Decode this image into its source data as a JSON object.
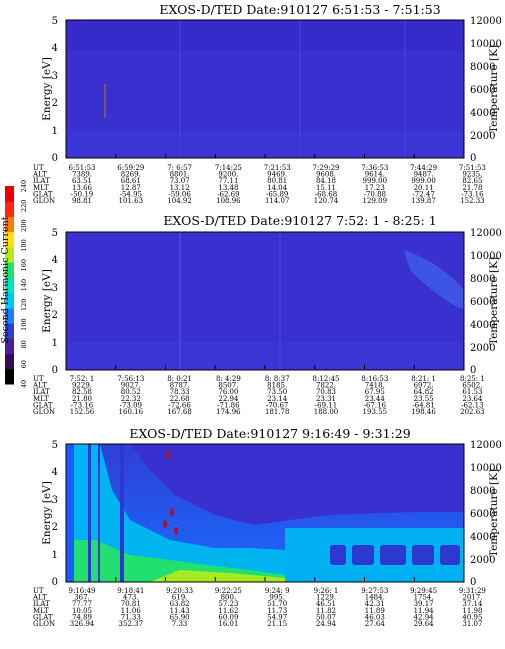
{
  "colorbar": {
    "label": "Second Harmonic Current",
    "ticks": [
      "40",
      "60",
      "80",
      "100",
      "120",
      "140",
      "160",
      "180",
      "200",
      "220",
      "240"
    ],
    "colors": [
      "#000000",
      "#3a0b4e",
      "#4b1f9a",
      "#2d3fd8",
      "#1f7fff",
      "#00c8f0",
      "#00e4c0",
      "#22e06a",
      "#b2ec1e",
      "#ffe000",
      "#ff7a00",
      "#ff2a00",
      "#e8000d"
    ]
  },
  "chart_data": [
    {
      "type": "heatmap",
      "title": "EXOS-D/TED   Date:910127  6:51:53 - 7:51:53",
      "ylabel": "Energy [eV]",
      "y2label": "Temperature [K]",
      "ylim": [
        0,
        5
      ],
      "yticks": [
        "0",
        "1",
        "2",
        "3",
        "4",
        "5"
      ],
      "y2lim": [
        0,
        12000
      ],
      "y2ticks": [
        "0",
        "2000",
        "4000",
        "6000",
        "8000",
        "10000",
        "12000"
      ],
      "background_color": "#3a2fcf",
      "ephemeris_labels": [
        "UT",
        "ALT",
        "ILAT",
        "MLT",
        "GLAT",
        "GLON"
      ],
      "ephemeris": [
        [
          "6:51:53",
          "7389.",
          "63.51",
          "13.66",
          "-50.19",
          "98.81"
        ],
        [
          "6:59:29",
          "8269.",
          "68.61",
          "12.87",
          "-54.95",
          "101.63"
        ],
        [
          "7: 6:57",
          "8801.",
          "73.07",
          "13.12",
          "-59.06",
          "104.92"
        ],
        [
          "7:14:25",
          "9200.",
          "77.11",
          "13.48",
          "-62.69",
          "108.96"
        ],
        [
          "7:21:53",
          "9469.",
          "80.81",
          "14.04",
          "-65.89",
          "114.07"
        ],
        [
          "7:29:29",
          "9608.",
          "84.18",
          "15.11",
          "-68.68",
          "120.74"
        ],
        [
          "7:36:53",
          "9614.",
          "999.00",
          "17.23",
          "-70.88",
          "129.09"
        ],
        [
          "7:44:29",
          "9487.",
          "999.00",
          "20.11",
          "-72.47",
          "139.87"
        ],
        [
          "7:51:53",
          "9235.",
          "82.65",
          "21.78",
          "-73.16",
          "152.33"
        ]
      ]
    },
    {
      "type": "heatmap",
      "title": "EXOS-D/TED   Date:910127  7:52: 1 - 8:25: 1",
      "ylabel": "Energy [eV]",
      "y2label": "Temperature [K]",
      "ylim": [
        0,
        5
      ],
      "yticks": [
        "0",
        "1",
        "2",
        "3",
        "4",
        "5"
      ],
      "y2lim": [
        0,
        12000
      ],
      "y2ticks": [
        "0",
        "2000",
        "4000",
        "6000",
        "8000",
        "10000",
        "12000"
      ],
      "background_color": "#3a2fcf",
      "ephemeris_labels": [
        "UT",
        "ALT",
        "ILAT",
        "MLT",
        "GLAT",
        "GLON"
      ],
      "ephemeris": [
        [
          "7:52: 1",
          "9229.",
          "82.58",
          "21.80",
          "-73.16",
          "152.56"
        ],
        [
          "7:56:13",
          "9027.",
          "80.52",
          "22.32",
          "-73.09",
          "160.16"
        ],
        [
          "8: 0:21",
          "8787.",
          "78.33",
          "22.68",
          "-72.66",
          "167.68"
        ],
        [
          "8: 4:29",
          "8507.",
          "76.00",
          "22.94",
          "-71.86",
          "174.96"
        ],
        [
          "8: 8:37",
          "8185.",
          "73.50",
          "23.14",
          "-70.67",
          "181.78"
        ],
        [
          "8:12:45",
          "7822.",
          "70.83",
          "23.31",
          "-69.11",
          "188.00"
        ],
        [
          "8:16:53",
          "7418.",
          "67.95",
          "23.44",
          "-67.16",
          "193.55"
        ],
        [
          "8:21: 1",
          "6972.",
          "64.82",
          "23.55",
          "-64.81",
          "198.46"
        ],
        [
          "8:25: 1",
          "6502.",
          "61.53",
          "23.64",
          "-62.13",
          "202.63"
        ]
      ]
    },
    {
      "type": "heatmap",
      "title": "EXOS-D/TED   Date:910127  9:16:49 - 9:31:29",
      "ylabel": "Energy [eV]",
      "y2label": "Temperature [K]",
      "ylim": [
        0,
        5
      ],
      "yticks": [
        "0",
        "1",
        "2",
        "3",
        "4",
        "5"
      ],
      "y2lim": [
        0,
        12000
      ],
      "y2ticks": [
        "0",
        "2000",
        "4000",
        "6000",
        "8000",
        "10000",
        "12000"
      ],
      "background_color": "#3a2fcf",
      "ephemeris_labels": [
        "UT",
        "ALT",
        "ILAT",
        "MLT",
        "GLAT",
        "GLON"
      ],
      "ephemeris": [
        [
          "9:16:49",
          "367.",
          "77.77",
          "10.05",
          "74.89",
          "326.94"
        ],
        [
          "9:18:41",
          "473.",
          "70.81",
          "11.06",
          "71.33",
          "352.37"
        ],
        [
          "9:20:33",
          "619.",
          "63.82",
          "11.43",
          "65.90",
          "7.33"
        ],
        [
          "9:22:25",
          "800.",
          "57.23",
          "11.62",
          "60.09",
          "16.01"
        ],
        [
          "9:24: 9",
          "995.",
          "51.70",
          "11.73",
          "54.97",
          "21.15"
        ],
        [
          "9:26: 1",
          "1229.",
          "46.51",
          "11.82",
          "50.07",
          "24.94"
        ],
        [
          "9:27:53",
          "1484.",
          "42.31",
          "11.89",
          "46.03",
          "27.64"
        ],
        [
          "9:29:45",
          "1754.",
          "39.17",
          "11.94",
          "42.94",
          "29.64"
        ],
        [
          "9:31:29",
          "2017.",
          "37.14",
          "11.98",
          "40.95",
          "31.07"
        ]
      ]
    }
  ]
}
